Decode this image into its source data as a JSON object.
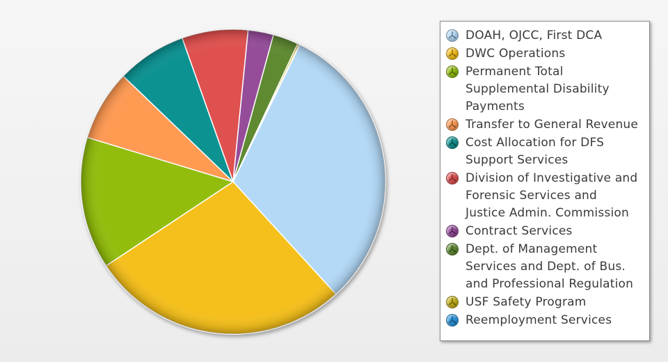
{
  "chart_data": {
    "type": "pie",
    "title": "",
    "legend_position": "right",
    "slices": [
      {
        "label": "DOAH, OJCC, First DCA",
        "value": 31.0,
        "color": "#b3d9f7"
      },
      {
        "label": "DWC Operations",
        "value": 27.5,
        "color": "#f5c01a"
      },
      {
        "label": "Permanent Total Supplemental Disability Payments",
        "value": 14.0,
        "color": "#92bd10"
      },
      {
        "label": "Transfer to General Revenue",
        "value": 7.5,
        "color": "#ff9a53"
      },
      {
        "label": "Cost Allocation for DFS Support Services",
        "value": 7.4,
        "color": "#119292"
      },
      {
        "label": "Division of Investigative and Forensic Services and Justice Admin. Commission",
        "value": 7.0,
        "color": "#df5150"
      },
      {
        "label": "Contract Services",
        "value": 2.7,
        "color": "#954d9a"
      },
      {
        "label": "Dept. of Management Services and Dept. of Bus. and Professional Regulation",
        "value": 2.7,
        "color": "#5f8a32"
      },
      {
        "label": "USF Safety Program",
        "value": 0.2,
        "color": "#c3b11b"
      },
      {
        "label": "Reemployment Services",
        "value": 0.05,
        "color": "#2b97de"
      }
    ]
  },
  "legend": {
    "lines": [
      [
        "DOAH, OJCC, First DCA"
      ],
      [
        "DWC Operations"
      ],
      [
        "Permanent Total",
        "Supplemental Disability",
        "Payments"
      ],
      [
        "Transfer to General Revenue"
      ],
      [
        "Cost Allocation for DFS",
        "Support Services"
      ],
      [
        "Division of Investigative and",
        "Forensic Services and",
        "Justice Admin. Commission"
      ],
      [
        "Contract Services"
      ],
      [
        "Dept. of Management",
        "Services and Dept. of Bus.",
        "and Professional Regulation"
      ],
      [
        "USF Safety Program"
      ],
      [
        "Reemployment Services"
      ]
    ]
  }
}
